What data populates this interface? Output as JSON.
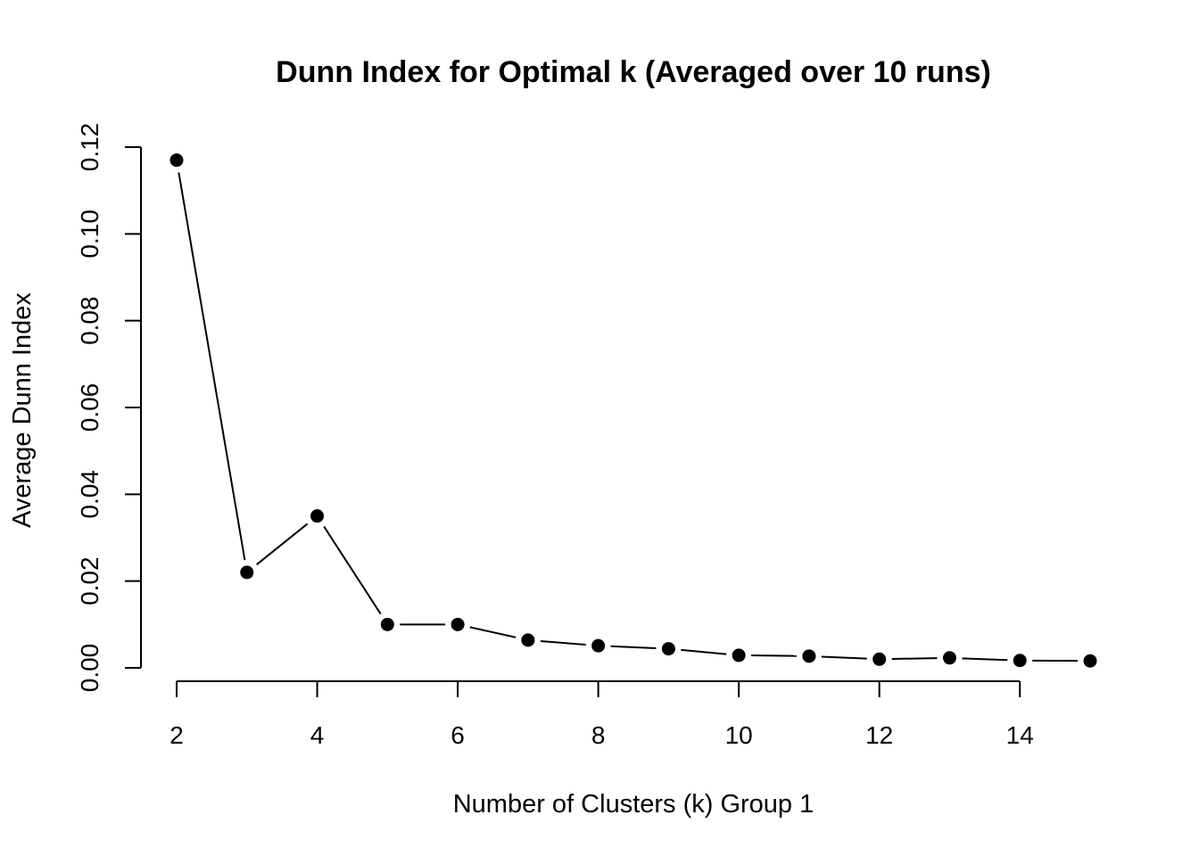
{
  "chart_data": {
    "type": "line",
    "title": "Dunn Index for Optimal k (Averaged over 10 runs)",
    "xlabel": "Number of Clusters (k) Group 1",
    "ylabel": "Average Dunn Index",
    "x": [
      2,
      3,
      4,
      5,
      6,
      7,
      8,
      9,
      10,
      11,
      12,
      13,
      14,
      15
    ],
    "series": [
      {
        "values": [
          0.117,
          0.022,
          0.035,
          0.01,
          0.01,
          0.0064,
          0.0051,
          0.0044,
          0.0029,
          0.0027,
          0.002,
          0.0023,
          0.0017,
          0.0016
        ]
      }
    ],
    "xticks": [
      2,
      4,
      6,
      8,
      10,
      12,
      14
    ],
    "xtick_labels": [
      "2",
      "4",
      "6",
      "8",
      "10",
      "12",
      "14"
    ],
    "yticks": [
      0.0,
      0.02,
      0.04,
      0.06,
      0.08,
      0.1,
      0.12
    ],
    "ytick_labels": [
      "0.00",
      "0.02",
      "0.04",
      "0.06",
      "0.08",
      "0.10",
      "0.12"
    ],
    "xlim": [
      2,
      15
    ],
    "ylim": [
      0,
      0.12
    ],
    "grid": false,
    "legend": "none",
    "markers": "filled-circle",
    "colors": {
      "series": "#000000",
      "axes": "#000000",
      "background": "#ffffff"
    }
  }
}
